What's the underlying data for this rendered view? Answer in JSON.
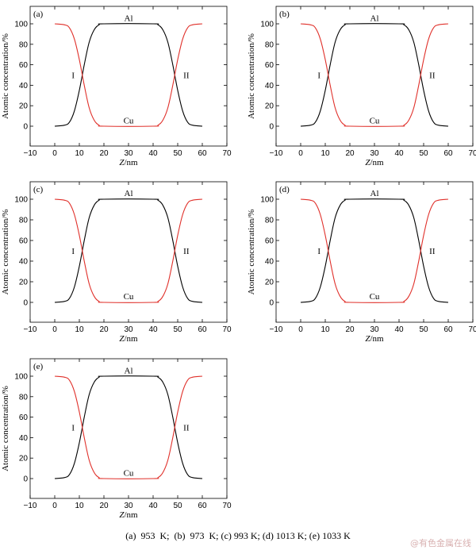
{
  "chart_data": [
    {
      "type": "line",
      "panel_label": "(a)",
      "xlabel_italic": "Z",
      "xlabel_rest": "/nm",
      "ylabel": "Atomic concentration/%",
      "xlim": [
        -10,
        70
      ],
      "ylim": [
        0,
        100
      ],
      "xticks": [
        "−10",
        "0",
        "10",
        "20",
        "30",
        "40",
        "50",
        "60",
        "70"
      ],
      "yticks": [
        "0",
        "20",
        "40",
        "60",
        "80",
        "100"
      ],
      "grid": false,
      "series": [
        {
          "name": "Al",
          "color": "#000000",
          "x": [
            0,
            4,
            6,
            8,
            10,
            12,
            14,
            16,
            18,
            20,
            40,
            42,
            44,
            46,
            48,
            50,
            52,
            54,
            56,
            60
          ],
          "y": [
            0,
            1,
            4,
            15,
            35,
            60,
            82,
            94,
            99,
            100,
            100,
            99,
            94,
            82,
            60,
            35,
            15,
            4,
            1,
            0
          ]
        },
        {
          "name": "Cu",
          "color": "#e0302a",
          "x": [
            0,
            4,
            6,
            8,
            10,
            12,
            14,
            16,
            18,
            20,
            40,
            42,
            44,
            46,
            48,
            50,
            52,
            54,
            56,
            60
          ],
          "y": [
            100,
            99,
            96,
            85,
            65,
            40,
            18,
            6,
            1,
            0,
            0,
            1,
            6,
            18,
            40,
            65,
            85,
            96,
            99,
            100
          ]
        }
      ],
      "annotations": [
        {
          "text": "Al",
          "x": 30,
          "y": 106
        },
        {
          "text": "Cu",
          "x": 30,
          "y": 6
        },
        {
          "text": "I",
          "x": 7.5,
          "y": 50
        },
        {
          "text": "II",
          "x": 53.5,
          "y": 50
        }
      ]
    },
    {
      "type": "line",
      "panel_label": "(b)",
      "xlabel_italic": "Z",
      "xlabel_rest": "/nm",
      "ylabel": "Atomic concentration/%",
      "xlim": [
        -10,
        70
      ],
      "ylim": [
        0,
        100
      ],
      "xticks": [
        "−10",
        "0",
        "10",
        "20",
        "30",
        "40",
        "50",
        "60",
        "70"
      ],
      "yticks": [
        "0",
        "20",
        "40",
        "60",
        "80",
        "100"
      ],
      "grid": false,
      "series": [
        {
          "name": "Al",
          "color": "#000000",
          "x": [
            0,
            4,
            6,
            8,
            10,
            12,
            14,
            16,
            18,
            20,
            40,
            42,
            44,
            46,
            48,
            50,
            52,
            54,
            56,
            60
          ],
          "y": [
            0,
            1,
            4,
            15,
            35,
            60,
            82,
            94,
            99,
            100,
            100,
            99,
            94,
            82,
            60,
            35,
            15,
            4,
            1,
            0
          ]
        },
        {
          "name": "Cu",
          "color": "#e0302a",
          "x": [
            0,
            4,
            6,
            8,
            10,
            12,
            14,
            16,
            18,
            20,
            40,
            42,
            44,
            46,
            48,
            50,
            52,
            54,
            56,
            60
          ],
          "y": [
            100,
            99,
            96,
            85,
            65,
            40,
            18,
            6,
            1,
            0,
            0,
            1,
            6,
            18,
            40,
            65,
            85,
            96,
            99,
            100
          ]
        }
      ],
      "annotations": [
        {
          "text": "Al",
          "x": 30,
          "y": 106
        },
        {
          "text": "Cu",
          "x": 30,
          "y": 6
        },
        {
          "text": "I",
          "x": 7.5,
          "y": 50
        },
        {
          "text": "II",
          "x": 53.5,
          "y": 50
        }
      ]
    },
    {
      "type": "line",
      "panel_label": "(c)",
      "xlabel_italic": "Z",
      "xlabel_rest": "/nm",
      "ylabel": "Atomic concentration/%",
      "xlim": [
        -10,
        70
      ],
      "ylim": [
        0,
        100
      ],
      "xticks": [
        "−10",
        "0",
        "10",
        "20",
        "30",
        "40",
        "50",
        "60",
        "70"
      ],
      "yticks": [
        "0",
        "20",
        "40",
        "60",
        "80",
        "100"
      ],
      "grid": false,
      "series": [
        {
          "name": "Al",
          "color": "#000000",
          "x": [
            0,
            4,
            6,
            8,
            10,
            12,
            14,
            16,
            18,
            20,
            40,
            42,
            44,
            46,
            48,
            50,
            52,
            54,
            56,
            60
          ],
          "y": [
            0,
            1,
            4,
            15,
            35,
            60,
            82,
            94,
            99,
            100,
            100,
            99,
            94,
            82,
            60,
            35,
            15,
            4,
            1,
            0
          ]
        },
        {
          "name": "Cu",
          "color": "#e0302a",
          "x": [
            0,
            4,
            6,
            8,
            10,
            12,
            14,
            16,
            18,
            20,
            40,
            42,
            44,
            46,
            48,
            50,
            52,
            54,
            56,
            60
          ],
          "y": [
            100,
            99,
            96,
            85,
            65,
            40,
            18,
            6,
            1,
            0,
            0,
            1,
            6,
            18,
            40,
            65,
            85,
            96,
            99,
            100
          ]
        }
      ],
      "annotations": [
        {
          "text": "Al",
          "x": 30,
          "y": 106
        },
        {
          "text": "Cu",
          "x": 30,
          "y": 6
        },
        {
          "text": "I",
          "x": 7.5,
          "y": 50
        },
        {
          "text": "II",
          "x": 53.5,
          "y": 50
        }
      ]
    },
    {
      "type": "line",
      "panel_label": "(d)",
      "xlabel_italic": "Z",
      "xlabel_rest": "/nm",
      "ylabel": "Atomic concentration/%",
      "xlim": [
        -10,
        70
      ],
      "ylim": [
        0,
        100
      ],
      "xticks": [
        "−10",
        "0",
        "10",
        "20",
        "30",
        "40",
        "50",
        "60",
        "70"
      ],
      "yticks": [
        "0",
        "20",
        "40",
        "60",
        "80",
        "100"
      ],
      "grid": false,
      "series": [
        {
          "name": "Al",
          "color": "#000000",
          "x": [
            0,
            4,
            6,
            8,
            10,
            12,
            14,
            16,
            18,
            20,
            40,
            42,
            44,
            46,
            48,
            50,
            52,
            54,
            56,
            60
          ],
          "y": [
            0,
            1,
            4,
            15,
            35,
            60,
            82,
            94,
            99,
            100,
            100,
            99,
            94,
            82,
            60,
            35,
            15,
            4,
            1,
            0
          ]
        },
        {
          "name": "Cu",
          "color": "#e0302a",
          "x": [
            0,
            4,
            6,
            8,
            10,
            12,
            14,
            16,
            18,
            20,
            40,
            42,
            44,
            46,
            48,
            50,
            52,
            54,
            56,
            60
          ],
          "y": [
            100,
            99,
            96,
            85,
            65,
            40,
            18,
            6,
            1,
            0,
            0,
            1,
            6,
            18,
            40,
            65,
            85,
            96,
            99,
            100
          ]
        }
      ],
      "annotations": [
        {
          "text": "Al",
          "x": 30,
          "y": 106
        },
        {
          "text": "Cu",
          "x": 30,
          "y": 6
        },
        {
          "text": "I",
          "x": 7.5,
          "y": 50
        },
        {
          "text": "II",
          "x": 53.5,
          "y": 50
        }
      ]
    },
    {
      "type": "line",
      "panel_label": "(e)",
      "xlabel_italic": "Z",
      "xlabel_rest": "/nm",
      "ylabel": "Atomic concentration/%",
      "xlim": [
        -10,
        70
      ],
      "ylim": [
        0,
        100
      ],
      "xticks": [
        "−10",
        "0",
        "10",
        "20",
        "30",
        "40",
        "50",
        "60",
        "70"
      ],
      "yticks": [
        "0",
        "20",
        "40",
        "60",
        "80",
        "100"
      ],
      "grid": false,
      "series": [
        {
          "name": "Al",
          "color": "#000000",
          "x": [
            0,
            4,
            6,
            8,
            10,
            12,
            14,
            16,
            18,
            20,
            40,
            42,
            44,
            46,
            48,
            50,
            52,
            54,
            56,
            60
          ],
          "y": [
            0,
            1,
            4,
            15,
            35,
            60,
            82,
            94,
            99,
            100,
            100,
            99,
            94,
            82,
            60,
            35,
            15,
            4,
            1,
            0
          ]
        },
        {
          "name": "Cu",
          "color": "#e0302a",
          "x": [
            0,
            4,
            6,
            8,
            10,
            12,
            14,
            16,
            18,
            20,
            40,
            42,
            44,
            46,
            48,
            50,
            52,
            54,
            56,
            60
          ],
          "y": [
            100,
            99,
            96,
            85,
            65,
            40,
            18,
            6,
            1,
            0,
            0,
            1,
            6,
            18,
            40,
            65,
            85,
            96,
            99,
            100
          ]
        }
      ],
      "annotations": [
        {
          "text": "Al",
          "x": 30,
          "y": 106
        },
        {
          "text": "Cu",
          "x": 30,
          "y": 6
        },
        {
          "text": "I",
          "x": 7.5,
          "y": 50
        },
        {
          "text": "II",
          "x": 53.5,
          "y": 50
        }
      ]
    }
  ],
  "caption": "(a)  953  K;  (b)  973  K; (c) 993 K; (d) 1013 K; (e) 1033 K",
  "watermark": "@有色金属在线"
}
